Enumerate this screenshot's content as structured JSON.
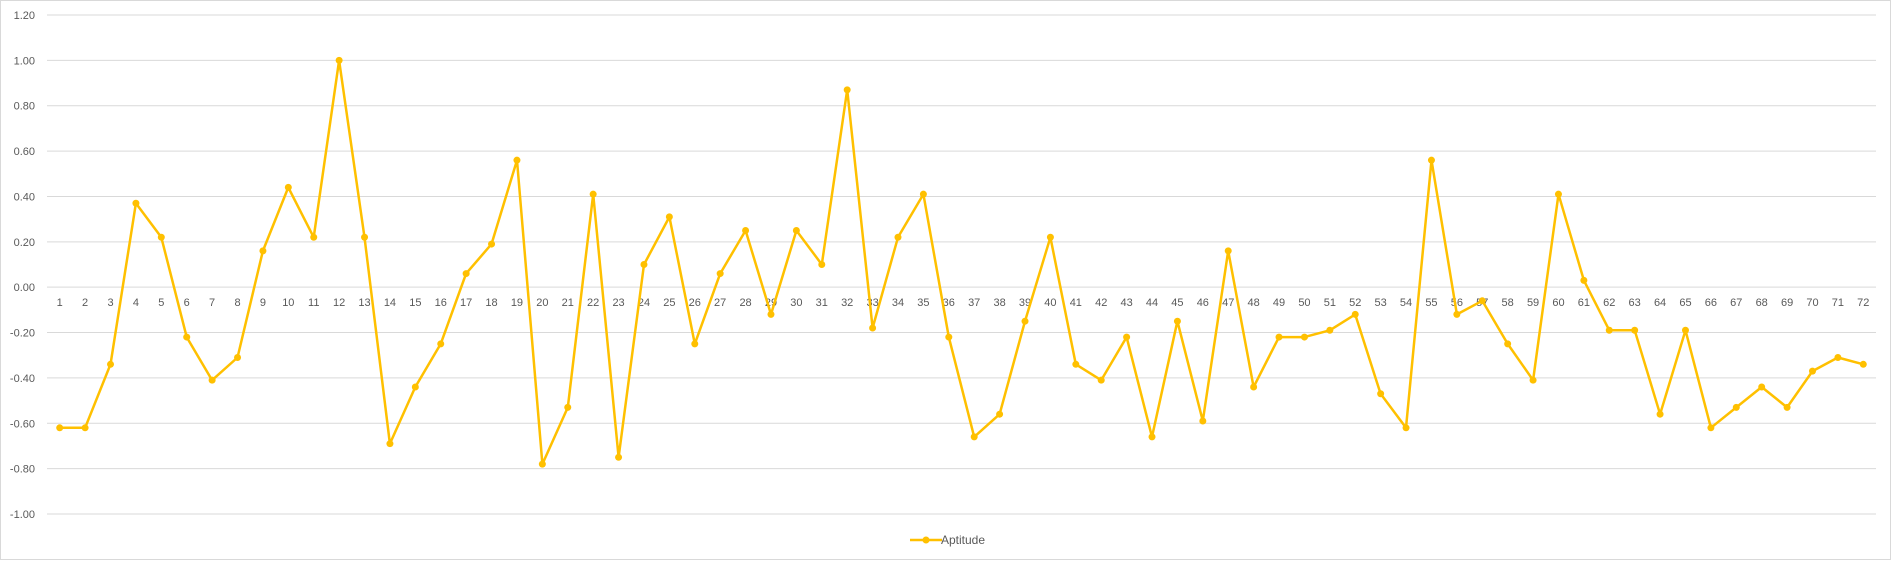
{
  "chart_data": {
    "type": "line",
    "title": "",
    "xlabel": "",
    "ylabel": "",
    "ylim": [
      -1.0,
      1.2
    ],
    "ytick_step": 0.2,
    "grid": "horizontal",
    "legend_position": "bottom-center",
    "categories": [
      "1",
      "2",
      "3",
      "4",
      "5",
      "6",
      "7",
      "8",
      "9",
      "10",
      "11",
      "12",
      "13",
      "14",
      "15",
      "16",
      "17",
      "18",
      "19",
      "20",
      "21",
      "22",
      "23",
      "24",
      "25",
      "26",
      "27",
      "28",
      "29",
      "30",
      "31",
      "32",
      "33",
      "34",
      "35",
      "36",
      "37",
      "38",
      "39",
      "40",
      "41",
      "42",
      "43",
      "44",
      "45",
      "46",
      "47",
      "48",
      "49",
      "50",
      "51",
      "52",
      "53",
      "54",
      "55",
      "56",
      "57",
      "58",
      "59",
      "60",
      "61",
      "62",
      "63",
      "64",
      "65",
      "66",
      "67",
      "68",
      "69",
      "70",
      "71",
      "72"
    ],
    "series": [
      {
        "name": "Aptitude",
        "color": "#ffc000",
        "values": [
          -0.62,
          -0.62,
          -0.34,
          0.37,
          0.22,
          -0.22,
          -0.41,
          -0.31,
          0.16,
          0.44,
          0.22,
          1.0,
          0.22,
          -0.69,
          -0.44,
          -0.25,
          0.06,
          0.19,
          0.56,
          -0.78,
          -0.53,
          0.41,
          -0.75,
          0.1,
          0.31,
          -0.25,
          0.06,
          0.25,
          -0.12,
          0.25,
          0.1,
          0.87,
          -0.18,
          0.22,
          0.41,
          -0.22,
          -0.66,
          -0.56,
          -0.15,
          0.22,
          -0.34,
          -0.41,
          -0.22,
          -0.66,
          -0.15,
          -0.59,
          0.16,
          -0.44,
          -0.22,
          -0.22,
          -0.19,
          -0.12,
          -0.47,
          -0.62,
          0.56,
          -0.12,
          -0.06,
          -0.25,
          -0.41,
          0.41,
          0.03,
          -0.19,
          -0.19,
          -0.56,
          -0.19,
          -0.62,
          -0.53,
          -0.44,
          -0.53,
          -0.37,
          -0.31,
          -0.34
        ]
      }
    ]
  }
}
